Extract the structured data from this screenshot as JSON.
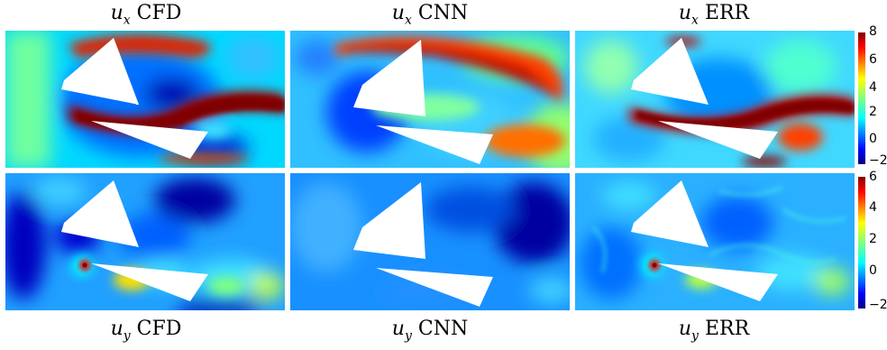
{
  "titles": {
    "top": [
      {
        "var": "u",
        "sub": "x",
        "label": "CFD"
      },
      {
        "var": "u",
        "sub": "x",
        "label": "CNN"
      },
      {
        "var": "u",
        "sub": "x",
        "label": "ERR"
      }
    ],
    "bottom": [
      {
        "var": "u",
        "sub": "y",
        "label": "CFD"
      },
      {
        "var": "u",
        "sub": "y",
        "label": "CNN"
      },
      {
        "var": "u",
        "sub": "y",
        "label": "ERR"
      }
    ]
  },
  "colorbars": {
    "top": {
      "ticks": [
        "8",
        "6",
        "4",
        "2",
        "0",
        "−2"
      ]
    },
    "bottom": {
      "ticks": [
        "6",
        "4",
        "2",
        "0",
        "−2"
      ]
    }
  },
  "colormap": {
    "name": "jet",
    "stops": [
      "#00007f",
      "#0000ff",
      "#0080ff",
      "#00ffff",
      "#80ff80",
      "#ffff00",
      "#ff8000",
      "#ff0000",
      "#7f0000"
    ]
  }
}
